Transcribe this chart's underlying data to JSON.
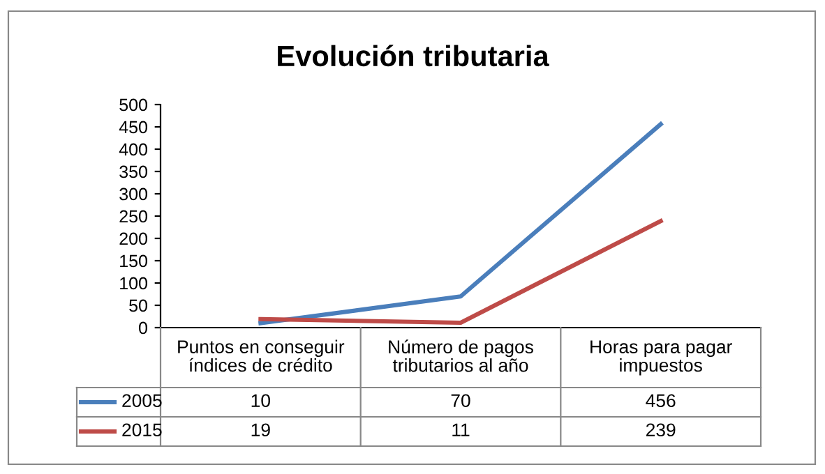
{
  "chart_data": {
    "type": "line",
    "title": "Evolución tributaria",
    "categories": [
      "Puntos en conseguir\níndices de crédito",
      "Número de pagos\ntributarios al año",
      "Horas para pagar\nimpuestos"
    ],
    "series": [
      {
        "name": "2005",
        "color": "#4a7ebb",
        "values": [
          10,
          70,
          456
        ]
      },
      {
        "name": "2015",
        "color": "#be4b48",
        "values": [
          19,
          11,
          239
        ]
      }
    ],
    "ylim": [
      0,
      500
    ],
    "yticks": [
      0,
      50,
      100,
      150,
      200,
      250,
      300,
      350,
      400,
      450,
      500
    ],
    "grid": false,
    "legend": "bottom",
    "data_labels": true,
    "marker": "none",
    "line_style": "solid"
  }
}
